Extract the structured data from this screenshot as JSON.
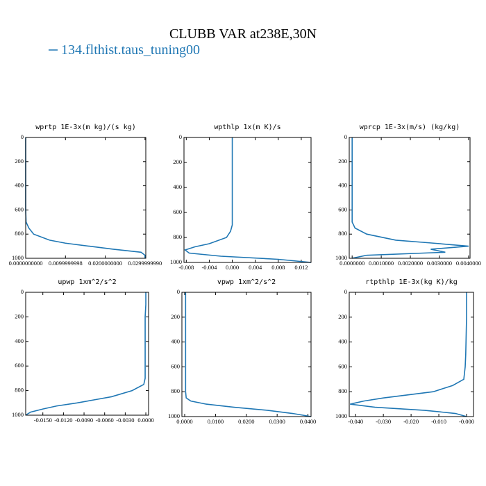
{
  "title": "CLUBB VAR at238E,30N",
  "legend": {
    "name": "134.flthist.taus_tuning00",
    "color": "#1f77b4"
  },
  "chart_data": [
    {
      "type": "line",
      "title": "wprtp  1E-3x(m kg)/(s kg)",
      "levels": [
        0,
        100,
        200,
        300,
        400,
        500,
        600,
        700,
        750,
        800,
        850,
        875,
        900,
        925,
        950,
        975,
        1000
      ],
      "series": [
        {
          "name": "134.flthist.taus_tuning00",
          "color": "#1f77b4",
          "values": [
            0,
            0,
            0,
            0,
            0,
            0,
            0,
            0.0001,
            0.0008,
            0.002,
            0.006,
            0.01,
            0.016,
            0.022,
            0.029,
            0.03,
            0.03
          ]
        }
      ],
      "xlim": [
        0,
        0.0302
      ],
      "xticks": [
        {
          "value": 0,
          "label": "0.0000000000"
        },
        {
          "value": 0.0099999998,
          "label": "0.0099999998"
        },
        {
          "value": 0.02,
          "label": "0.0200000000"
        },
        {
          "value": 0.029999999,
          "label": "0.0299999990"
        }
      ],
      "ylim": [
        0,
        1000
      ],
      "yticks": [
        0,
        200,
        400,
        600,
        800,
        1000
      ]
    },
    {
      "type": "line",
      "title": "wpthlp  1x(m K)/s",
      "levels": [
        0,
        100,
        200,
        300,
        400,
        500,
        600,
        700,
        750,
        800,
        850,
        875,
        900,
        925,
        950,
        975,
        1000
      ],
      "series": [
        {
          "name": "134.flthist.taus_tuning00",
          "color": "#1f77b4",
          "values": [
            0,
            0,
            0,
            0,
            0,
            0,
            0,
            0,
            -0.0003,
            -0.001,
            -0.004,
            -0.0065,
            -0.0082,
            -0.0075,
            -0.002,
            0.008,
            0.0137
          ]
        }
      ],
      "xlim": [
        -0.0084,
        0.0137
      ],
      "xticks": [
        -0.008,
        -0.004,
        {
          "value": 0,
          "label": "0.000"
        },
        {
          "value": 0.004,
          "label": "0.004"
        },
        {
          "value": 0.008,
          "label": "0.008"
        },
        0.012
      ],
      "ylim": [
        0,
        1000
      ],
      "yticks": [
        0,
        200,
        400,
        600,
        800,
        1000
      ]
    },
    {
      "type": "line",
      "title": "wprcp  1E-3x(m/s) (kg/kg)",
      "levels": [
        0,
        100,
        200,
        300,
        400,
        500,
        600,
        700,
        750,
        800,
        850,
        875,
        900,
        925,
        950,
        975,
        1000
      ],
      "series": [
        {
          "name": "134.flthist.taus_tuning00",
          "color": "#1f77b4",
          "values": [
            0,
            0,
            0,
            0,
            0,
            0,
            0,
            0,
            0.0001,
            0.0005,
            0.0015,
            0.0028,
            0.004,
            0.0027,
            0.0032,
            0.0005,
            0
          ]
        }
      ],
      "xlim": [
        -0.0001,
        0.00405
      ],
      "xticks": [
        {
          "value": 0,
          "label": "0.0000000"
        },
        {
          "value": 0.001,
          "label": "0.0010000"
        },
        {
          "value": 0.002,
          "label": "0.0020000"
        },
        {
          "value": 0.003,
          "label": "0.0030000"
        },
        {
          "value": 0.004,
          "label": "0.0040000"
        }
      ],
      "ylim": [
        0,
        1000
      ],
      "yticks": [
        0,
        200,
        400,
        600,
        800,
        1000
      ]
    },
    {
      "type": "line",
      "title": "upwp  1xm^2/s^2",
      "levels": [
        0,
        100,
        200,
        300,
        400,
        500,
        600,
        700,
        750,
        800,
        850,
        875,
        900,
        925,
        950,
        975,
        1000
      ],
      "series": [
        {
          "name": "134.flthist.taus_tuning00",
          "color": "#1f77b4",
          "values": [
            0,
            0,
            -0.0001,
            -0.0001,
            -0.0001,
            -0.0001,
            -0.0001,
            -0.0001,
            -0.0003,
            -0.002,
            -0.005,
            -0.0075,
            -0.01,
            -0.013,
            -0.015,
            -0.0168,
            -0.0175
          ]
        }
      ],
      "xlim": [
        -0.0175,
        0.0004
      ],
      "xticks": [
        {
          "value": -0.015,
          "label": "-0.0150"
        },
        {
          "value": -0.012,
          "label": "-0.0120"
        },
        {
          "value": -0.009,
          "label": "-0.0090"
        },
        {
          "value": -0.006,
          "label": "-0.0060"
        },
        {
          "value": -0.003,
          "label": "-0.0030"
        },
        {
          "value": 0,
          "label": "0.0000"
        }
      ],
      "ylim": [
        0,
        1000
      ],
      "yticks": [
        0,
        200,
        400,
        600,
        800,
        1000
      ]
    },
    {
      "type": "line",
      "title": "vpwp  1xm^2/s^2",
      "levels": [
        0,
        100,
        200,
        300,
        400,
        500,
        600,
        700,
        750,
        800,
        850,
        875,
        900,
        925,
        950,
        975,
        1000
      ],
      "series": [
        {
          "name": "134.flthist.taus_tuning00",
          "color": "#1f77b4",
          "values": [
            0.0003,
            0.0003,
            0.0003,
            0.0003,
            0.0003,
            0.0003,
            0.0003,
            0.0003,
            0.0003,
            0.0003,
            0.0005,
            0.002,
            0.007,
            0.016,
            0.027,
            0.035,
            0.041
          ]
        }
      ],
      "xlim": [
        -0.0009,
        0.041
      ],
      "xticks": [
        {
          "value": 0,
          "label": "0.0000"
        },
        {
          "value": 0.01,
          "label": "0.0100"
        },
        {
          "value": 0.02,
          "label": "0.0200"
        },
        {
          "value": 0.03,
          "label": "0.0300"
        },
        {
          "value": 0.04,
          "label": "0.0400"
        }
      ],
      "ylim": [
        0,
        1000
      ],
      "yticks": [
        0,
        200,
        400,
        600,
        800,
        1000
      ]
    },
    {
      "type": "line",
      "title": "rtpthlp  1E-3x(kg K)/kg",
      "levels": [
        0,
        100,
        200,
        300,
        400,
        500,
        600,
        700,
        750,
        800,
        850,
        875,
        900,
        925,
        950,
        975,
        1000
      ],
      "series": [
        {
          "name": "134.flthist.taus_tuning00",
          "color": "#1f77b4",
          "values": [
            0,
            0,
            0,
            -0.0001,
            -0.0002,
            -0.0003,
            -0.0005,
            -0.001,
            -0.005,
            -0.012,
            -0.03,
            -0.037,
            -0.042,
            -0.033,
            -0.015,
            -0.004,
            0
          ]
        }
      ],
      "xlim": [
        -0.0423,
        0.0025
      ],
      "xticks": [
        {
          "value": -0.04,
          "label": "-0.040"
        },
        {
          "value": -0.03,
          "label": "-0.030"
        },
        {
          "value": -0.02,
          "label": "-0.020"
        },
        {
          "value": -0.01,
          "label": "-0.010"
        },
        {
          "value": 0,
          "label": "-0.000"
        }
      ],
      "ylim": [
        0,
        1000
      ],
      "yticks": [
        0,
        200,
        400,
        600,
        800,
        1000
      ]
    }
  ]
}
